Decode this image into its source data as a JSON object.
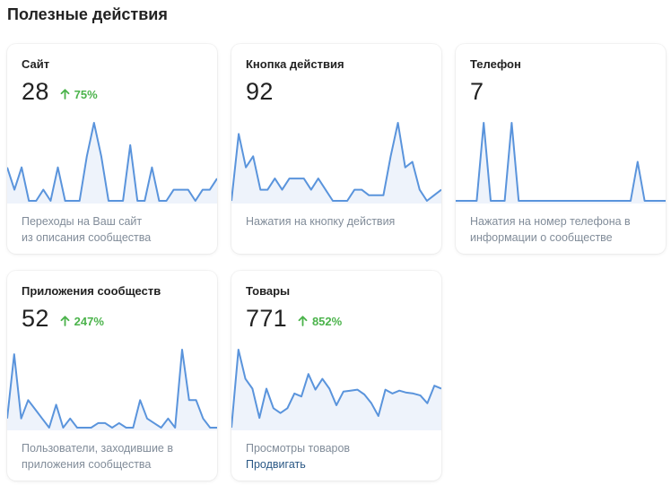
{
  "section": {
    "title": "Полезные действия"
  },
  "colors": {
    "line": "#5a94dc",
    "fill": "#eef3fb",
    "trend_up": "#4bb34b"
  },
  "cards": [
    {
      "title": "Сайт",
      "value": "28",
      "trend": "75%",
      "description_lines": [
        "Переходы на Ваш сайт",
        "из описания сообщества"
      ],
      "series": [
        3,
        1,
        3,
        0,
        0,
        1,
        0,
        3,
        0,
        0,
        0,
        4,
        7,
        4,
        0,
        0,
        0,
        5,
        0,
        0,
        3,
        0,
        0,
        1,
        1,
        1,
        0,
        1,
        1,
        2
      ]
    },
    {
      "title": "Кнопка действия",
      "value": "92",
      "trend": "",
      "description_lines": [
        "Нажатия на кнопку действия"
      ],
      "series": [
        0,
        6,
        3,
        4,
        1,
        1,
        2,
        1,
        2,
        2,
        2,
        1,
        2,
        1,
        0,
        0,
        0,
        1,
        1,
        0.5,
        0.5,
        0.5,
        4,
        7,
        3,
        3.5,
        1,
        0,
        0.5,
        1
      ]
    },
    {
      "title": "Телефон",
      "value": "7",
      "trend": "",
      "description_lines": [
        "Нажатия на номер телефона в",
        "информации о сообществе"
      ],
      "series": [
        0,
        0,
        0,
        0,
        1,
        0,
        0,
        0,
        1,
        0,
        0,
        0,
        0,
        0,
        0,
        0,
        0,
        0,
        0,
        0,
        0,
        0,
        0,
        0,
        0,
        0,
        0.5,
        0,
        0,
        0,
        0
      ]
    },
    {
      "title": "Приложения сообществ",
      "value": "52",
      "trend": "247%",
      "description_lines": [
        "Пользователи, заходившие в",
        "приложения сообщества"
      ],
      "series": [
        1,
        8,
        1,
        3,
        2,
        1,
        0,
        2.5,
        0,
        1,
        0,
        0,
        0,
        0.5,
        0.5,
        0,
        0.5,
        0,
        0,
        3,
        1,
        0.5,
        0,
        1,
        0,
        8.5,
        3,
        3,
        1,
        0,
        0
      ]
    },
    {
      "title": "Товары",
      "value": "771",
      "trend": "852%",
      "description_lines": [
        "Просмотры товаров"
      ],
      "action": "Продвигать",
      "series": [
        0,
        8,
        5,
        4,
        1,
        4,
        2,
        1.5,
        2,
        3.5,
        3.2,
        5.5,
        3.9,
        5,
        4,
        2.3,
        3.7,
        3.8,
        3.9,
        3.4,
        2.5,
        1.2,
        3.9,
        3.5,
        3.8,
        3.6,
        3.5,
        3.3,
        2.5,
        4.3,
        4
      ]
    }
  ]
}
